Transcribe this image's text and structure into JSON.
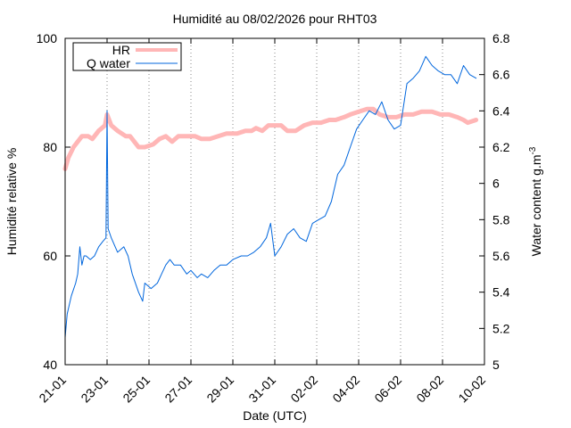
{
  "chart_data": {
    "type": "line",
    "title": "Humidité au 08/02/2026 pour RHT03",
    "xlabel": "Date (UTC)",
    "ylabel_left": "Humidité relative %",
    "ylabel_right_base": "Water content g.m",
    "ylabel_right_sup": "-3",
    "x_ticks": [
      "21-01",
      "23-01",
      "25-01",
      "27-01",
      "29-01",
      "31-01",
      "02-02",
      "04-02",
      "06-02",
      "08-02",
      "10-02"
    ],
    "x_range_days": [
      0,
      20
    ],
    "y_left_range": [
      40,
      100
    ],
    "y_left_ticks": [
      "40",
      "60",
      "80",
      "100"
    ],
    "y_right_range": [
      5,
      6.8
    ],
    "y_right_ticks": [
      "5",
      "5.2",
      "5.4",
      "5.6",
      "5.8",
      "6",
      "6.2",
      "6.4",
      "6.6",
      "6.8"
    ],
    "grid": "vertical dotted at x ticks",
    "legend_position": "top-left",
    "series": [
      {
        "name": "HR",
        "axis": "left",
        "color": "#ffb6b6",
        "points": [
          [
            0,
            76
          ],
          [
            0.15,
            78
          ],
          [
            0.4,
            80
          ],
          [
            0.8,
            82
          ],
          [
            1.1,
            82
          ],
          [
            1.3,
            81.5
          ],
          [
            1.6,
            83
          ],
          [
            1.9,
            84
          ],
          [
            2.0,
            86
          ],
          [
            2.2,
            84
          ],
          [
            2.5,
            83
          ],
          [
            2.9,
            82
          ],
          [
            3.1,
            82
          ],
          [
            3.3,
            81
          ],
          [
            3.5,
            80
          ],
          [
            3.8,
            80
          ],
          [
            4.2,
            80.5
          ],
          [
            4.5,
            81.5
          ],
          [
            4.8,
            82
          ],
          [
            5.1,
            81
          ],
          [
            5.4,
            82
          ],
          [
            5.8,
            82
          ],
          [
            6.2,
            82
          ],
          [
            6.5,
            81.5
          ],
          [
            6.9,
            81.5
          ],
          [
            7.3,
            82
          ],
          [
            7.7,
            82.5
          ],
          [
            8.2,
            82.5
          ],
          [
            8.6,
            83
          ],
          [
            8.9,
            83
          ],
          [
            9.1,
            83.5
          ],
          [
            9.4,
            83
          ],
          [
            9.7,
            84
          ],
          [
            10.0,
            84
          ],
          [
            10.3,
            84
          ],
          [
            10.6,
            83
          ],
          [
            11.0,
            83
          ],
          [
            11.4,
            84
          ],
          [
            11.8,
            84.5
          ],
          [
            12.2,
            84.5
          ],
          [
            12.6,
            85
          ],
          [
            12.9,
            85
          ],
          [
            13.3,
            85.5
          ],
          [
            13.6,
            86
          ],
          [
            14.0,
            86.5
          ],
          [
            14.4,
            87
          ],
          [
            14.7,
            87
          ],
          [
            15.0,
            86
          ],
          [
            15.4,
            85.5
          ],
          [
            15.8,
            85.5
          ],
          [
            16.2,
            86
          ],
          [
            16.6,
            86
          ],
          [
            17.0,
            86.5
          ],
          [
            17.5,
            86.5
          ],
          [
            17.9,
            86
          ],
          [
            18.3,
            86
          ],
          [
            18.7,
            85.5
          ],
          [
            19.0,
            85
          ],
          [
            19.2,
            84.5
          ],
          [
            19.6,
            85
          ]
        ]
      },
      {
        "name": "Q water",
        "axis": "right",
        "color": "#0066dd",
        "points": [
          [
            0,
            5.15
          ],
          [
            0.1,
            5.28
          ],
          [
            0.3,
            5.38
          ],
          [
            0.5,
            5.45
          ],
          [
            0.6,
            5.5
          ],
          [
            0.7,
            5.65
          ],
          [
            0.8,
            5.55
          ],
          [
            0.9,
            5.6
          ],
          [
            1.0,
            5.6
          ],
          [
            1.2,
            5.58
          ],
          [
            1.4,
            5.6
          ],
          [
            1.6,
            5.65
          ],
          [
            1.8,
            5.68
          ],
          [
            1.95,
            5.7
          ],
          [
            2.0,
            6.4
          ],
          [
            2.05,
            5.75
          ],
          [
            2.2,
            5.7
          ],
          [
            2.5,
            5.62
          ],
          [
            2.8,
            5.65
          ],
          [
            3.0,
            5.6
          ],
          [
            3.2,
            5.5
          ],
          [
            3.5,
            5.4
          ],
          [
            3.7,
            5.35
          ],
          [
            3.8,
            5.45
          ],
          [
            4.1,
            5.42
          ],
          [
            4.4,
            5.45
          ],
          [
            4.6,
            5.5
          ],
          [
            4.8,
            5.55
          ],
          [
            5.0,
            5.58
          ],
          [
            5.2,
            5.55
          ],
          [
            5.5,
            5.55
          ],
          [
            5.8,
            5.5
          ],
          [
            6.0,
            5.52
          ],
          [
            6.3,
            5.48
          ],
          [
            6.5,
            5.5
          ],
          [
            6.8,
            5.48
          ],
          [
            7.1,
            5.52
          ],
          [
            7.4,
            5.55
          ],
          [
            7.7,
            5.55
          ],
          [
            8.0,
            5.58
          ],
          [
            8.4,
            5.6
          ],
          [
            8.7,
            5.6
          ],
          [
            9.0,
            5.62
          ],
          [
            9.3,
            5.65
          ],
          [
            9.6,
            5.7
          ],
          [
            9.8,
            5.78
          ],
          [
            10.0,
            5.6
          ],
          [
            10.3,
            5.65
          ],
          [
            10.6,
            5.72
          ],
          [
            10.9,
            5.75
          ],
          [
            11.2,
            5.7
          ],
          [
            11.5,
            5.68
          ],
          [
            11.8,
            5.78
          ],
          [
            12.1,
            5.8
          ],
          [
            12.4,
            5.82
          ],
          [
            12.7,
            5.9
          ],
          [
            13.0,
            6.05
          ],
          [
            13.3,
            6.1
          ],
          [
            13.6,
            6.2
          ],
          [
            13.9,
            6.3
          ],
          [
            14.2,
            6.35
          ],
          [
            14.5,
            6.4
          ],
          [
            14.8,
            6.38
          ],
          [
            15.1,
            6.45
          ],
          [
            15.4,
            6.35
          ],
          [
            15.7,
            6.3
          ],
          [
            16.0,
            6.32
          ],
          [
            16.3,
            6.55
          ],
          [
            16.6,
            6.58
          ],
          [
            16.9,
            6.62
          ],
          [
            17.2,
            6.7
          ],
          [
            17.5,
            6.65
          ],
          [
            17.8,
            6.62
          ],
          [
            18.1,
            6.6
          ],
          [
            18.4,
            6.6
          ],
          [
            18.7,
            6.55
          ],
          [
            19.0,
            6.65
          ],
          [
            19.3,
            6.6
          ],
          [
            19.6,
            6.58
          ]
        ]
      }
    ]
  }
}
